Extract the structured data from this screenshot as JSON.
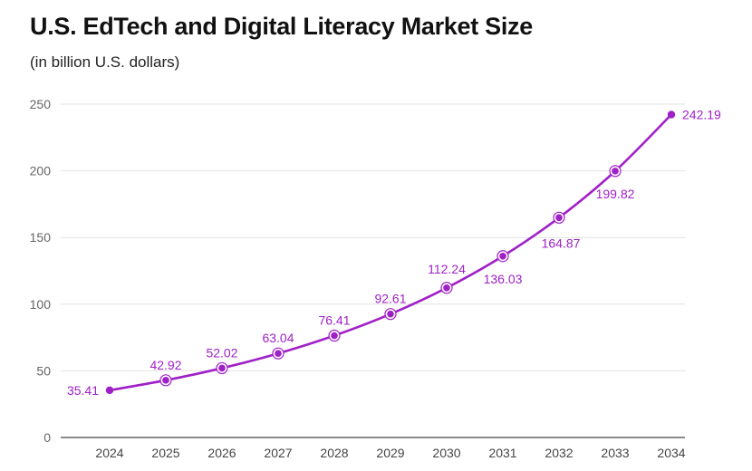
{
  "header": {
    "title": "U.S. EdTech and Digital Literacy Market Size",
    "subtitle": "(in billion U.S. dollars)"
  },
  "colors": {
    "series": "#a020c8",
    "grid": "#e2e2e2",
    "axis": "#444444"
  },
  "chart_data": {
    "type": "line",
    "title": "U.S. EdTech and Digital Literacy Market Size",
    "subtitle": "(in billion U.S. dollars)",
    "xlabel": "",
    "ylabel": "",
    "x": [
      "2024",
      "2025",
      "2026",
      "2027",
      "2028",
      "2029",
      "2030",
      "2031",
      "2032",
      "2033",
      "2034"
    ],
    "series": [
      {
        "values": [
          35.41,
          42.92,
          52.02,
          63.04,
          76.41,
          92.61,
          112.24,
          136.03,
          164.87,
          199.82,
          242.19
        ],
        "labels": [
          "35.41",
          "42.92",
          "52.02",
          "63.04",
          "76.41",
          "92.61",
          "112.24",
          "136.03",
          "164.87",
          "199.82",
          "242.19"
        ]
      }
    ],
    "ylim": [
      0,
      250
    ],
    "yticks": [
      "0",
      "50",
      "100",
      "150",
      "200",
      "250"
    ],
    "grid": true,
    "legend": "none"
  }
}
